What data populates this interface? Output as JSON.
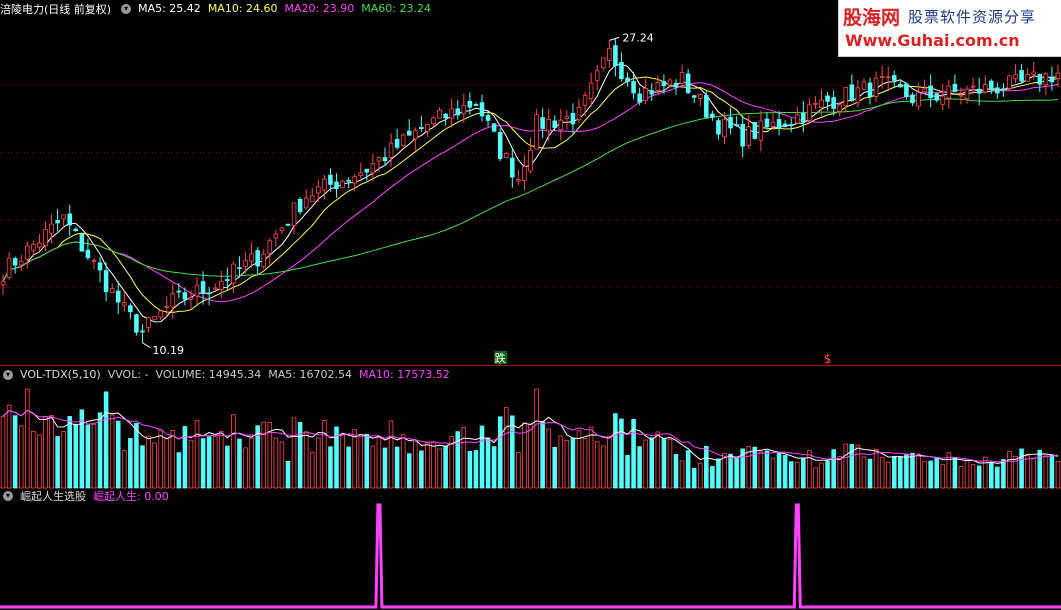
{
  "header": {
    "title": "涪陵电力(日线 前复权)",
    "indicators": [
      {
        "label": "MA5: 25.42",
        "color": "#ffffff"
      },
      {
        "label": "MA10: 24.60",
        "color": "#ffff55"
      },
      {
        "label": "MA20: 23.90",
        "color": "#ff44ff"
      },
      {
        "label": "MA60: 23.24",
        "color": "#44dd44"
      }
    ]
  },
  "volume_header": {
    "name": "VOL-TDX(5,10)",
    "items": [
      {
        "label": "VVOL: -",
        "color": "#cccccc"
      },
      {
        "label": "VOLUME: 14945.34",
        "color": "#cccccc"
      },
      {
        "label": "MA5: 16702.54",
        "color": "#cccccc"
      },
      {
        "label": "MA10: 17573.52",
        "color": "#ff44ff"
      }
    ]
  },
  "indicator_header": {
    "name": "崛起人生选股",
    "items": [
      {
        "label": "崛起人生: 0.00",
        "color": "#ff44ff"
      }
    ]
  },
  "logo": {
    "brand": "股海网",
    "slogan": "股票软件资源分享",
    "url": "Www.Guhai.com.cn"
  },
  "chart_data": [
    {
      "type": "candlestick",
      "title": "涪陵电力(日线 前复权)",
      "n_bars": 175,
      "ylim": [
        9.5,
        28.5
      ],
      "grid": true,
      "annotations": [
        {
          "label": "27.24",
          "kind": "high",
          "bar_index": 100,
          "value": 27.24
        },
        {
          "label": "10.19",
          "kind": "low",
          "bar_index": 23,
          "value": 10.19
        },
        {
          "label": "跌",
          "bar_index": 82
        },
        {
          "label": "$",
          "bar_index": 136
        }
      ],
      "anchors": [
        [
          0,
          14.2
        ],
        [
          10,
          17.2
        ],
        [
          20,
          12.0
        ],
        [
          23,
          10.8
        ],
        [
          28,
          12.5
        ],
        [
          35,
          13.5
        ],
        [
          42,
          15.0
        ],
        [
          50,
          18.5
        ],
        [
          60,
          20.0
        ],
        [
          70,
          22.5
        ],
        [
          78,
          23.8
        ],
        [
          82,
          21.0
        ],
        [
          85,
          19.5
        ],
        [
          88,
          22.5
        ],
        [
          95,
          23.0
        ],
        [
          100,
          26.5
        ],
        [
          105,
          24.3
        ],
        [
          112,
          25.0
        ],
        [
          118,
          22.5
        ],
        [
          122,
          21.8
        ],
        [
          130,
          22.8
        ],
        [
          136,
          23.8
        ],
        [
          145,
          24.8
        ],
        [
          150,
          24.0
        ],
        [
          160,
          24.4
        ],
        [
          168,
          24.8
        ],
        [
          174,
          25.4
        ]
      ],
      "moving_averages": [
        {
          "name": "MA5",
          "value": 25.42,
          "color": "#ffffff"
        },
        {
          "name": "MA10",
          "value": 24.6,
          "color": "#ffff55"
        },
        {
          "name": "MA20",
          "value": 23.9,
          "color": "#ff44ff"
        },
        {
          "name": "MA60",
          "value": 23.24,
          "color": "#44dd44"
        }
      ]
    },
    {
      "type": "bar",
      "title": "VOL-TDX(5,10)",
      "ylim": [
        0,
        100
      ],
      "up_color": "#ff4b4b",
      "down_color": "#55ffff"
    },
    {
      "type": "line",
      "title": "崛起人生选股",
      "series_color": "#ff44ff",
      "ylim": [
        0,
        1
      ],
      "signals": [
        62,
        131
      ]
    }
  ]
}
